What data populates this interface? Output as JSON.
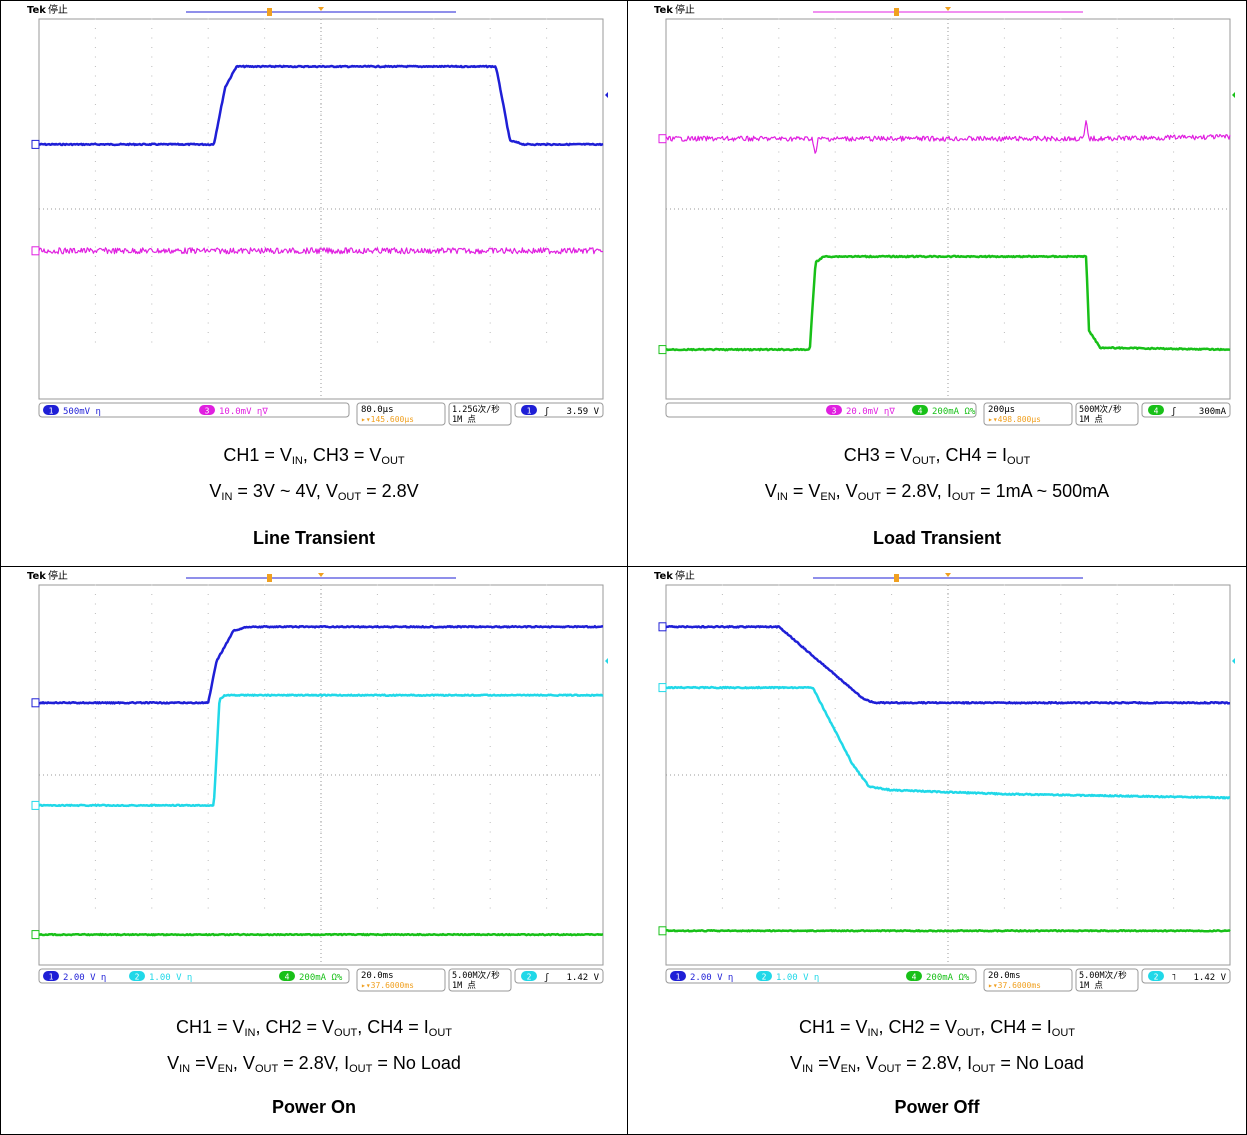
{
  "panels": [
    {
      "id": "line-transient",
      "scope": {
        "brand": "Tek",
        "status": "停止",
        "channels": [
          {
            "num": "1",
            "scale": "500mV",
            "color": "#1f1fd6",
            "coupling": "ƞ"
          },
          {
            "num": "3",
            "scale": "10.0mV",
            "color": "#e020e0",
            "coupling": "ƞ∇"
          }
        ],
        "timebase": "80.0µs",
        "trig_pos": "145.600µs",
        "sample_rate": "1.25G次/秒",
        "record": "1M 点",
        "trigger": {
          "channel": "1",
          "slope": "rise",
          "level": "3.59 V",
          "color": "#1f1fd6"
        }
      },
      "caption_lines": [
        [
          {
            "t": "CH1 = V"
          },
          {
            "s": "IN"
          },
          {
            "t": ", CH3 = V"
          },
          {
            "s": "OUT"
          }
        ],
        [
          {
            "t": "V"
          },
          {
            "s": "IN"
          },
          {
            "t": " = 3V ~ 4V, V"
          },
          {
            "s": "OUT"
          },
          {
            "t": " = 2.8V"
          }
        ]
      ],
      "title": "Line Transient"
    },
    {
      "id": "load-transient",
      "scope": {
        "brand": "Tek",
        "status": "停止",
        "channels": [
          {
            "num": "3",
            "scale": "20.0mV",
            "color": "#e020e0",
            "coupling": "ƞ∇"
          },
          {
            "num": "4",
            "scale": "200mA Ω%",
            "color": "#18c018",
            "coupling": ""
          }
        ],
        "timebase": "200µs",
        "trig_pos": "498.800µs",
        "sample_rate": "500M次/秒",
        "record": "1M 点",
        "trigger": {
          "channel": "4",
          "slope": "rise",
          "level": "300mA",
          "color": "#18c018"
        }
      },
      "caption_lines": [
        [
          {
            "t": "CH3 = V"
          },
          {
            "s": "OUT"
          },
          {
            "t": ", CH4 = I"
          },
          {
            "s": "OUT"
          }
        ],
        [
          {
            "t": "V"
          },
          {
            "s": "IN"
          },
          {
            "t": " = V"
          },
          {
            "s": "EN"
          },
          {
            "t": ", V"
          },
          {
            "s": "OUT"
          },
          {
            "t": " = 2.8V, I"
          },
          {
            "s": "OUT"
          },
          {
            "t": " = 1mA ~ 500mA"
          }
        ]
      ],
      "title": "Load Transient"
    },
    {
      "id": "power-on",
      "scope": {
        "brand": "Tek",
        "status": "停止",
        "channels": [
          {
            "num": "1",
            "scale": "2.00 V",
            "color": "#1f1fd6",
            "coupling": "ƞ"
          },
          {
            "num": "2",
            "scale": "1.00 V",
            "color": "#20d8e8",
            "coupling": "ƞ"
          },
          {
            "num": "4",
            "scale": "200mA Ω%",
            "color": "#18c018",
            "coupling": ""
          }
        ],
        "timebase": "20.0ms",
        "trig_pos": "37.6000ms",
        "sample_rate": "5.00M次/秒",
        "record": "1M 点",
        "trigger": {
          "channel": "2",
          "slope": "rise",
          "level": "1.42 V",
          "color": "#20d8e8"
        }
      },
      "caption_lines": [
        [
          {
            "t": "CH1 = V"
          },
          {
            "s": "IN"
          },
          {
            "t": ", CH2 = V"
          },
          {
            "s": "OUT"
          },
          {
            "t": ", CH4 = I"
          },
          {
            "s": "OUT"
          }
        ],
        [
          {
            "t": "V"
          },
          {
            "s": "IN"
          },
          {
            "t": " =V"
          },
          {
            "s": "EN"
          },
          {
            "t": ", V"
          },
          {
            "s": "OUT"
          },
          {
            "t": " = 2.8V, I"
          },
          {
            "s": "OUT"
          },
          {
            "t": " = No Load"
          }
        ]
      ],
      "title": "Power On"
    },
    {
      "id": "power-off",
      "scope": {
        "brand": "Tek",
        "status": "停止",
        "channels": [
          {
            "num": "1",
            "scale": "2.00 V",
            "color": "#1f1fd6",
            "coupling": "ƞ"
          },
          {
            "num": "2",
            "scale": "1.00 V",
            "color": "#20d8e8",
            "coupling": "ƞ"
          },
          {
            "num": "4",
            "scale": "200mA Ω%",
            "color": "#18c018",
            "coupling": ""
          }
        ],
        "timebase": "20.0ms",
        "trig_pos": "37.6000ms",
        "sample_rate": "5.00M次/秒",
        "record": "1M 点",
        "trigger": {
          "channel": "2",
          "slope": "fall",
          "level": "1.42 V",
          "color": "#20d8e8"
        }
      },
      "caption_lines": [
        [
          {
            "t": "CH1 = V"
          },
          {
            "s": "IN"
          },
          {
            "t": ", CH2 = V"
          },
          {
            "s": "OUT"
          },
          {
            "t": ", CH4 = I"
          },
          {
            "s": "OUT"
          }
        ],
        [
          {
            "t": "V"
          },
          {
            "s": "IN"
          },
          {
            "t": " =V"
          },
          {
            "s": "EN"
          },
          {
            "t": ", V"
          },
          {
            "s": "OUT"
          },
          {
            "t": " = 2.8V, I"
          },
          {
            "s": "OUT"
          },
          {
            "t": " = No Load"
          }
        ]
      ],
      "title": "Power Off"
    }
  ]
}
